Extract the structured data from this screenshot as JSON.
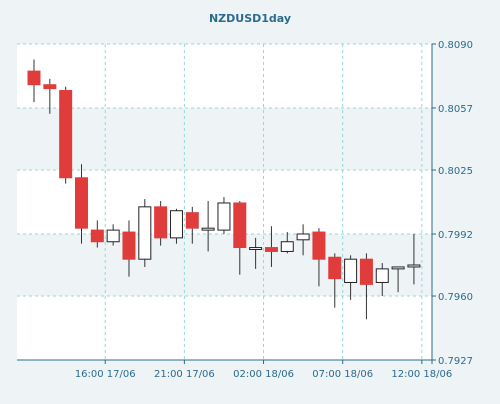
{
  "chart_data": {
    "type": "candlestick",
    "title": "NZDUSD1day",
    "xlabel": "",
    "ylabel": "",
    "ylim": [
      0.7927,
      0.809
    ],
    "y_ticks": [
      0.809,
      0.8057,
      0.8025,
      0.7992,
      0.796,
      0.7927
    ],
    "y_tick_labels": [
      "0.8090",
      "0.8057",
      "0.8025",
      "0.7992",
      "0.7960",
      "0.7927"
    ],
    "x_tick_labels": [
      "16:00 17/06",
      "21:00 17/06",
      "02:00 18/06",
      "07:00 18/06",
      "12:00 18/06"
    ],
    "x_tick_positions": [
      4.5,
      9.5,
      14.5,
      19.5,
      24.5
    ],
    "grid": true,
    "colors": {
      "bullish_fill": "#ffffff",
      "bearish_fill": "#e03c3c",
      "outline": "#222222",
      "wick": "#333333",
      "grid": "#99d6d6",
      "axis_text": "#2b6c8e",
      "title_text": "#2b6c8e",
      "plot_bg_a": "#ffffff",
      "plot_bg_b": "#eef3f5"
    },
    "candles": [
      {
        "open": 0.8076,
        "high": 0.8082,
        "low": 0.806,
        "close": 0.8069
      },
      {
        "open": 0.8069,
        "high": 0.8072,
        "low": 0.8054,
        "close": 0.8067
      },
      {
        "open": 0.8066,
        "high": 0.8068,
        "low": 0.8018,
        "close": 0.8021
      },
      {
        "open": 0.8021,
        "high": 0.8028,
        "low": 0.7987,
        "close": 0.7995
      },
      {
        "open": 0.7994,
        "high": 0.7999,
        "low": 0.7985,
        "close": 0.7988
      },
      {
        "open": 0.7988,
        "high": 0.7997,
        "low": 0.7986,
        "close": 0.7994
      },
      {
        "open": 0.7993,
        "high": 0.7999,
        "low": 0.797,
        "close": 0.7979
      },
      {
        "open": 0.7979,
        "high": 0.801,
        "low": 0.7975,
        "close": 0.8006
      },
      {
        "open": 0.8006,
        "high": 0.8009,
        "low": 0.7986,
        "close": 0.799
      },
      {
        "open": 0.799,
        "high": 0.8005,
        "low": 0.7987,
        "close": 0.8004
      },
      {
        "open": 0.8003,
        "high": 0.8006,
        "low": 0.7987,
        "close": 0.7995
      },
      {
        "open": 0.7994,
        "high": 0.8009,
        "low": 0.7983,
        "close": 0.7995
      },
      {
        "open": 0.7994,
        "high": 0.8011,
        "low": 0.7992,
        "close": 0.8008
      },
      {
        "open": 0.8008,
        "high": 0.8009,
        "low": 0.7971,
        "close": 0.7985
      },
      {
        "open": 0.7984,
        "high": 0.799,
        "low": 0.7974,
        "close": 0.7985
      },
      {
        "open": 0.7985,
        "high": 0.7996,
        "low": 0.7975,
        "close": 0.7983
      },
      {
        "open": 0.7983,
        "high": 0.7993,
        "low": 0.7982,
        "close": 0.7988
      },
      {
        "open": 0.7989,
        "high": 0.7997,
        "low": 0.7981,
        "close": 0.7992
      },
      {
        "open": 0.7993,
        "high": 0.7995,
        "low": 0.7965,
        "close": 0.7979
      },
      {
        "open": 0.798,
        "high": 0.7982,
        "low": 0.7954,
        "close": 0.7969
      },
      {
        "open": 0.7967,
        "high": 0.7981,
        "low": 0.7958,
        "close": 0.7979
      },
      {
        "open": 0.7979,
        "high": 0.7982,
        "low": 0.7948,
        "close": 0.7966
      },
      {
        "open": 0.7967,
        "high": 0.7977,
        "low": 0.796,
        "close": 0.7974
      },
      {
        "open": 0.7974,
        "high": 0.7975,
        "low": 0.7962,
        "close": 0.7975
      },
      {
        "open": 0.7975,
        "high": 0.7992,
        "low": 0.7966,
        "close": 0.7976
      }
    ]
  }
}
